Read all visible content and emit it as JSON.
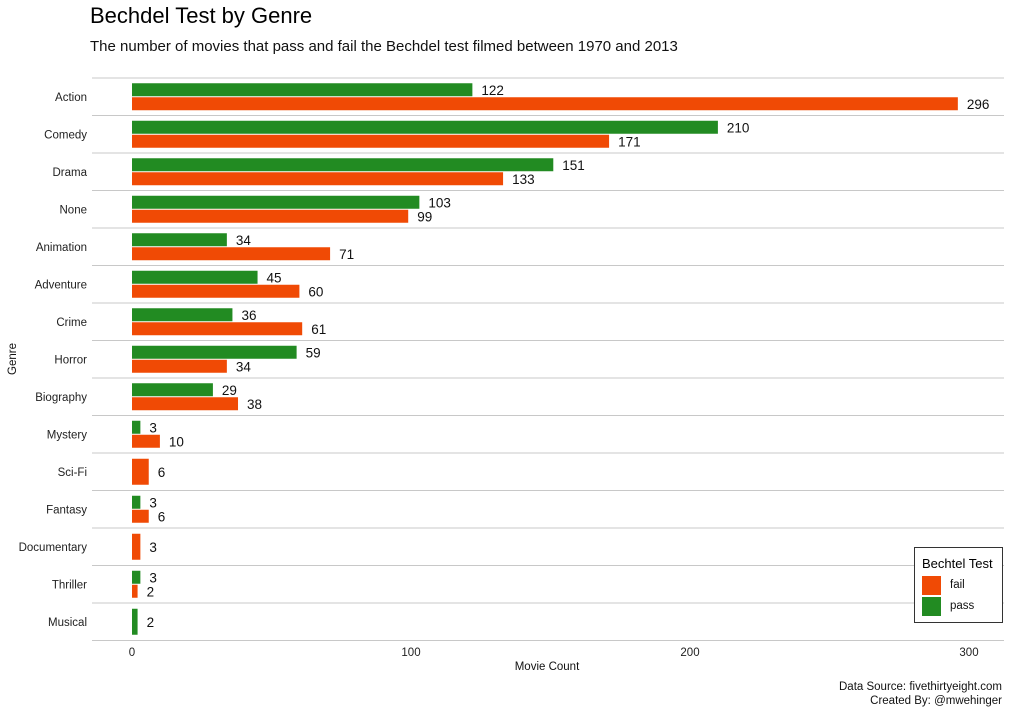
{
  "header": {
    "title": "Bechdel Test by Genre",
    "subtitle": "The number of movies that pass and fail the Bechdel test filmed between 1970 and 2013"
  },
  "caption": {
    "line1": "Data Source: fivethirtyeight.com",
    "line2": "Created By: @mwehinger"
  },
  "legend": {
    "title": "Bechtel Test",
    "items": [
      {
        "label": "fail",
        "color": "#F04A05"
      },
      {
        "label": "pass",
        "color": "#228B22"
      }
    ]
  },
  "chart_data": {
    "type": "bar",
    "orientation": "horizontal",
    "title": "Bechdel Test by Genre",
    "subtitle": "The number of movies that pass and fail the Bechdel test filmed between 1970 and 2013",
    "xlabel": "Movie Count",
    "ylabel": "Genre",
    "xlim": [
      0,
      310
    ],
    "xticks": [
      0,
      100,
      200,
      300
    ],
    "grid": "horizontal lines between genres",
    "legend_position": "bottom-right",
    "categories": [
      "Action",
      "Comedy",
      "Drama",
      "None",
      "Animation",
      "Adventure",
      "Crime",
      "Horror",
      "Biography",
      "Mystery",
      "Sci-Fi",
      "Fantasy",
      "Documentary",
      "Thriller",
      "Musical"
    ],
    "series": [
      {
        "name": "pass",
        "color": "#228B22",
        "values": [
          122,
          210,
          151,
          103,
          34,
          45,
          36,
          59,
          29,
          3,
          null,
          3,
          null,
          3,
          2
        ]
      },
      {
        "name": "fail",
        "color": "#F04A05",
        "values": [
          296,
          171,
          133,
          99,
          71,
          60,
          61,
          34,
          38,
          10,
          6,
          6,
          3,
          2,
          null
        ]
      }
    ]
  }
}
